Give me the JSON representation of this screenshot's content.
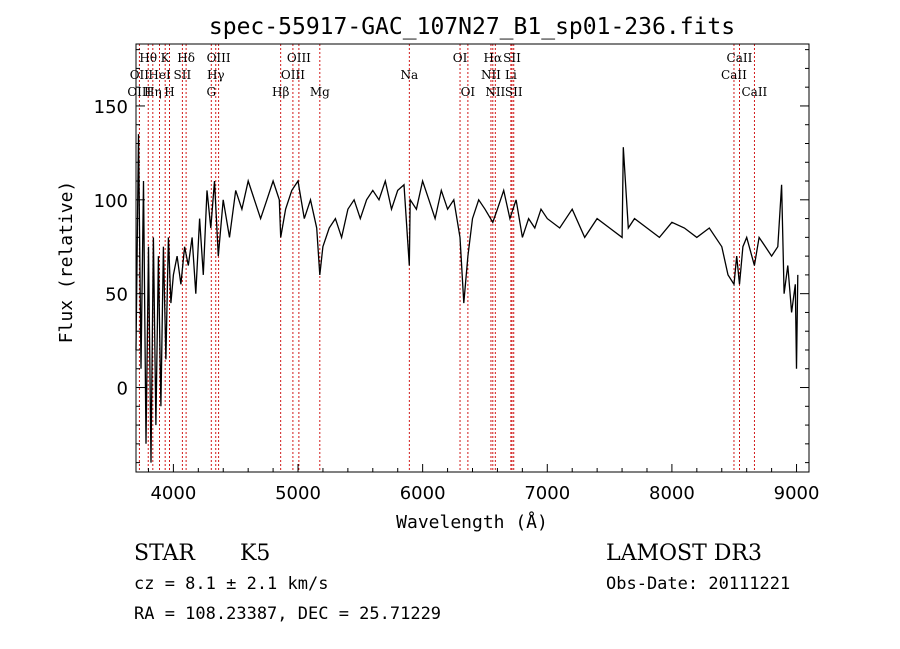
{
  "chart_data": {
    "type": "line",
    "title": "spec-55917-GAC_107N27_B1_sp01-236.fits",
    "xlabel": "Wavelength (Å)",
    "ylabel": "Flux (relative)",
    "xlim": [
      3700,
      9100
    ],
    "ylim": [
      -45,
      183
    ],
    "xticks": [
      4000,
      5000,
      6000,
      7000,
      8000,
      9000
    ],
    "xtick_labels": [
      "4000",
      "5000",
      "6000",
      "7000",
      "8000",
      "9000"
    ],
    "yticks": [
      0,
      50,
      100,
      150
    ],
    "ytick_labels": [
      "0",
      "50",
      "100",
      "150"
    ],
    "series": [
      {
        "name": "spectrum",
        "x": [
          3700,
          3720,
          3740,
          3760,
          3780,
          3800,
          3820,
          3840,
          3860,
          3880,
          3900,
          3920,
          3940,
          3960,
          3980,
          4000,
          4030,
          4060,
          4090,
          4120,
          4150,
          4180,
          4210,
          4240,
          4270,
          4300,
          4330,
          4360,
          4400,
          4450,
          4500,
          4550,
          4600,
          4650,
          4700,
          4750,
          4800,
          4850,
          4861,
          4900,
          4950,
          5000,
          5050,
          5100,
          5150,
          5175,
          5200,
          5250,
          5300,
          5350,
          5400,
          5450,
          5500,
          5550,
          5600,
          5650,
          5700,
          5750,
          5800,
          5850,
          5893,
          5900,
          5950,
          6000,
          6050,
          6100,
          6150,
          6200,
          6250,
          6300,
          6330,
          6363,
          6400,
          6450,
          6500,
          6563,
          6600,
          6650,
          6700,
          6750,
          6800,
          6850,
          6900,
          6950,
          7000,
          7100,
          7200,
          7300,
          7400,
          7500,
          7600,
          7610,
          7650,
          7700,
          7800,
          7900,
          8000,
          8100,
          8200,
          8300,
          8400,
          8450,
          8498,
          8520,
          8542,
          8570,
          8600,
          8662,
          8700,
          8750,
          8800,
          8850,
          8880,
          8900,
          8930,
          8960,
          8990,
          9000,
          9010
        ],
        "y": [
          20,
          135,
          10,
          110,
          -30,
          75,
          -40,
          80,
          -20,
          70,
          -10,
          75,
          15,
          80,
          45,
          60,
          70,
          55,
          75,
          65,
          80,
          50,
          90,
          60,
          105,
          85,
          110,
          70,
          100,
          80,
          105,
          95,
          110,
          100,
          90,
          100,
          110,
          100,
          80,
          95,
          105,
          110,
          90,
          100,
          85,
          60,
          75,
          85,
          90,
          80,
          95,
          100,
          90,
          100,
          105,
          100,
          110,
          95,
          105,
          108,
          65,
          100,
          95,
          110,
          100,
          90,
          105,
          95,
          100,
          80,
          45,
          70,
          90,
          100,
          95,
          88,
          95,
          105,
          90,
          100,
          80,
          90,
          85,
          95,
          90,
          85,
          95,
          80,
          90,
          85,
          80,
          128,
          85,
          90,
          85,
          80,
          88,
          85,
          80,
          85,
          75,
          60,
          55,
          70,
          55,
          75,
          80,
          65,
          80,
          75,
          70,
          75,
          108,
          50,
          65,
          40,
          55,
          10,
          60
        ],
        "color": "#000000"
      }
    ],
    "line_markers": [
      {
        "name": "Hθ",
        "wavelength": 3798,
        "row": 0
      },
      {
        "name": "OII",
        "wavelength": 3727,
        "row": 1
      },
      {
        "name": "OIII",
        "wavelength": 3727,
        "row": 2
      },
      {
        "name": "Hη",
        "wavelength": 3835,
        "row": 2
      },
      {
        "name": "HeI",
        "wavelength": 3889,
        "row": 1
      },
      {
        "name": "K",
        "wavelength": 3934,
        "row": 0
      },
      {
        "name": "H",
        "wavelength": 3969,
        "row": 2
      },
      {
        "name": "SII",
        "wavelength": 4072,
        "row": 1
      },
      {
        "name": "Hδ",
        "wavelength": 4102,
        "row": 0
      },
      {
        "name": "OIII",
        "wavelength": 4363,
        "row": 0
      },
      {
        "name": "Hγ",
        "wavelength": 4340,
        "row": 1
      },
      {
        "name": "G",
        "wavelength": 4304,
        "row": 2
      },
      {
        "name": "Hβ",
        "wavelength": 4861,
        "row": 2
      },
      {
        "name": "OIII",
        "wavelength": 5007,
        "row": 0
      },
      {
        "name": "OIII",
        "wavelength": 4959,
        "row": 1
      },
      {
        "name": "Mg",
        "wavelength": 5175,
        "row": 2
      },
      {
        "name": "Na",
        "wavelength": 5893,
        "row": 1
      },
      {
        "name": "OI",
        "wavelength": 6300,
        "row": 0
      },
      {
        "name": "OI",
        "wavelength": 6363,
        "row": 2
      },
      {
        "name": "Hα",
        "wavelength": 6563,
        "row": 0
      },
      {
        "name": "NII",
        "wavelength": 6548,
        "row": 1
      },
      {
        "name": "NII",
        "wavelength": 6583,
        "row": 2
      },
      {
        "name": "SII",
        "wavelength": 6717,
        "row": 0
      },
      {
        "name": "Li",
        "wavelength": 6708,
        "row": 1
      },
      {
        "name": "SII",
        "wavelength": 6731,
        "row": 2
      },
      {
        "name": "CaII",
        "wavelength": 8542,
        "row": 0
      },
      {
        "name": "CaII",
        "wavelength": 8498,
        "row": 1
      },
      {
        "name": "CaII",
        "wavelength": 8662,
        "row": 2
      }
    ]
  },
  "info": {
    "classification": "STAR",
    "subclass": "K5",
    "redshift": "cz = 8.1 ± 2.1 km/s",
    "coords": "RA = 108.23387, DEC =  25.71229",
    "survey": "LAMOST DR3",
    "obs_date": "Obs-Date: 20111221"
  }
}
